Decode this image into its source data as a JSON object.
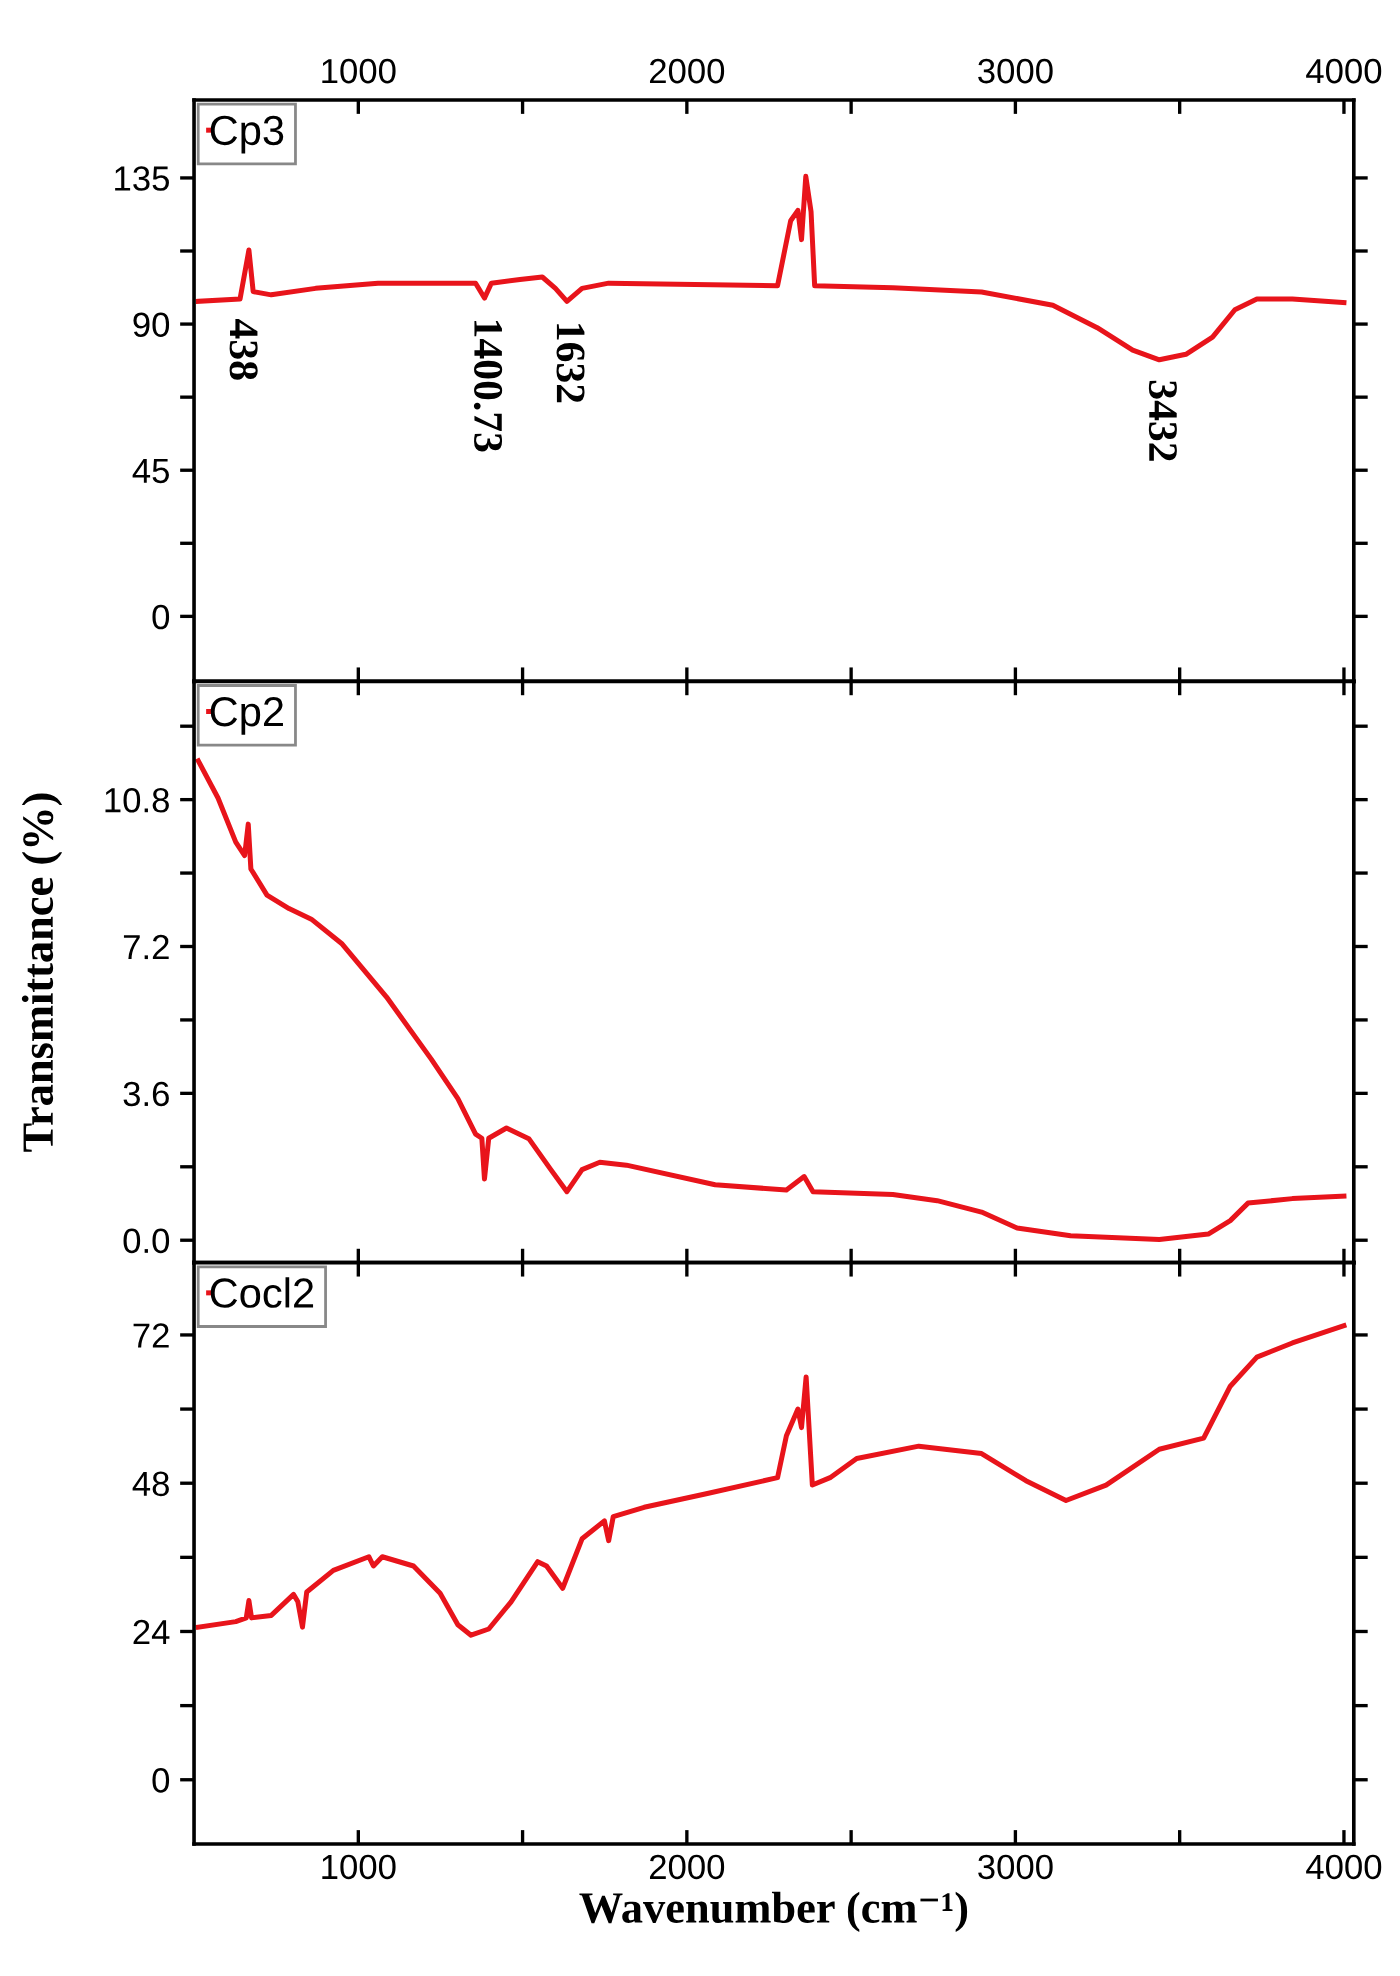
{
  "chart_data": [
    {
      "type": "line",
      "legend": "top left",
      "grid": false,
      "marker": "none",
      "line_style": "solid",
      "xlim": [
        500,
        4030
      ],
      "xticks": [
        1000,
        {
          "value": 1500,
          "label": null
        },
        2000,
        {
          "value": 2500,
          "label": null
        },
        3000,
        {
          "value": 3500,
          "label": null
        },
        4000
      ],
      "ylim": [
        -20,
        159
      ],
      "yticks": [
        0,
        {
          "value": 22.5,
          "label": null
        },
        45,
        {
          "value": 67.5,
          "label": null
        },
        90,
        {
          "value": 112.5,
          "label": null
        },
        135
      ],
      "annotations": [
        {
          "text": "438",
          "x": 640,
          "y": 97.7
        },
        {
          "text": "1400.73",
          "x": 1384,
          "y": 98
        },
        {
          "text": "1632",
          "x": 1635,
          "y": 97
        },
        {
          "text": "3432",
          "x": 3438,
          "y": 79
        }
      ],
      "series": [
        {
          "name": "Cp3",
          "color": "#e8141b",
          "x": [
            513,
            640,
            667,
            680,
            735,
            870,
            1060,
            1357,
            1384,
            1405,
            1492,
            1560,
            1600,
            1635,
            1681,
            1762,
            2276,
            2316,
            2338,
            2349,
            2362,
            2378,
            2389,
            2627,
            2897,
            3114,
            3249,
            3357,
            3438,
            3519,
            3600,
            3668,
            3735,
            3843,
            4000
          ],
          "values": [
            97,
            97.7,
            112.8,
            100,
            99,
            101,
            102.6,
            102.6,
            98,
            102.6,
            103.7,
            104.5,
            101,
            97,
            101,
            102.6,
            101.8,
            121.8,
            125,
            116,
            135.5,
            124.6,
            101.8,
            101.2,
            99.9,
            95.8,
            88.9,
            82,
            79,
            80.7,
            86,
            94.4,
            97.7,
            97.7,
            96.6
          ]
        }
      ]
    },
    {
      "type": "line",
      "legend": "top left",
      "grid": false,
      "marker": "none",
      "line_style": "solid",
      "ylabel": "Transmittance (%)",
      "tick_labels": "y",
      "xlim": [
        500,
        4030
      ],
      "xticks": [
        {
          "value": 1000,
          "label": null
        },
        {
          "value": 1500,
          "label": null
        },
        {
          "value": 2000,
          "label": null
        },
        {
          "value": 2500,
          "label": null
        },
        {
          "value": 3000,
          "label": null
        },
        {
          "value": 3500,
          "label": null
        },
        {
          "value": 4000,
          "label": null
        }
      ],
      "ylim": [
        -0.55,
        13.7
      ],
      "yticks": [
        {
          "value": 0,
          "label": "0.0"
        },
        {
          "value": 1.8,
          "label": null
        },
        3.6,
        {
          "value": 5.4,
          "label": null
        },
        7.2,
        {
          "value": 9,
          "label": null
        },
        10.8,
        {
          "value": 12.6,
          "label": null
        }
      ],
      "series": [
        {
          "name": "Cp2",
          "color": "#e8141b",
          "x": [
            513,
            573,
            627,
            654,
            665,
            673,
            722,
            789,
            857,
            951,
            1086,
            1222,
            1303,
            1357,
            1376,
            1384,
            1397,
            1451,
            1519,
            1586,
            1635,
            1681,
            1735,
            1816,
            2086,
            2303,
            2357,
            2384,
            2627,
            2762,
            2897,
            3005,
            3168,
            3438,
            3587,
            3654,
            3708,
            3843,
            4000
          ],
          "values": [
            11.75,
            10.84,
            9.76,
            9.43,
            10.2,
            9.1,
            8.46,
            8.13,
            7.87,
            7.26,
            5.96,
            4.44,
            3.47,
            2.6,
            2.5,
            1.5,
            2.5,
            2.75,
            2.49,
            1.73,
            1.19,
            1.73,
            1.91,
            1.84,
            1.36,
            1.23,
            1.56,
            1.19,
            1.12,
            0.97,
            0.69,
            0.3,
            0.11,
            0.02,
            0.15,
            0.48,
            0.91,
            1.02,
            1.08
          ]
        }
      ]
    },
    {
      "type": "line",
      "legend": "top left",
      "grid": false,
      "marker": "none",
      "line_style": "solid",
      "xlabel": "Wavenumber (cm⁻¹)",
      "xlim": [
        500,
        4030
      ],
      "xticks": [
        1000,
        {
          "value": 1500,
          "label": null
        },
        2000,
        {
          "value": 2500,
          "label": null
        },
        3000,
        {
          "value": 3500,
          "label": null
        },
        4000
      ],
      "ylim": [
        -10.4,
        83.7
      ],
      "yticks": [
        0,
        {
          "value": 12,
          "label": null
        },
        24,
        {
          "value": 36,
          "label": null
        },
        48,
        {
          "value": 60,
          "label": null
        },
        72
      ],
      "series": [
        {
          "name": "Cocl2",
          "color": "#e8141b",
          "x": [
            513,
            627,
            659,
            667,
            675,
            735,
            803,
            816,
            830,
            843,
            924,
            1032,
            1046,
            1073,
            1168,
            1249,
            1303,
            1343,
            1397,
            1465,
            1546,
            1573,
            1622,
            1681,
            1749,
            1762,
            1776,
            1870,
            2059,
            2276,
            2303,
            2338,
            2349,
            2363,
            2382,
            2436,
            2517,
            2706,
            2897,
            3032,
            3154,
            3276,
            3438,
            3573,
            3654,
            3735,
            3843,
            4000
          ],
          "values": [
            24.7,
            25.6,
            26.2,
            29,
            26.2,
            26.6,
            30,
            28.8,
            24.7,
            30.4,
            33.9,
            36.1,
            34.6,
            36.1,
            34.6,
            30.2,
            25.1,
            23.4,
            24.4,
            28.8,
            35.3,
            34.6,
            31,
            39,
            41.9,
            38.7,
            42.6,
            44.1,
            46.3,
            48.9,
            55.7,
            60,
            57,
            65.2,
            47.7,
            48.9,
            52,
            54,
            52.8,
            48.4,
            45.2,
            47.7,
            53.5,
            55.3,
            63.7,
            68.4,
            70.7,
            73.5
          ]
        }
      ]
    }
  ]
}
